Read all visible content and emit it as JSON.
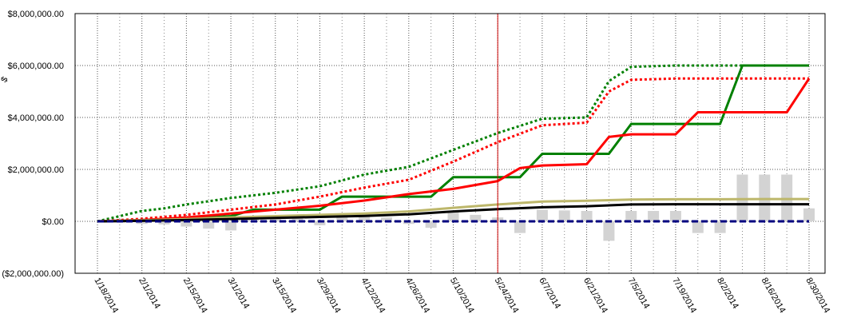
{
  "chart_data": {
    "type": "line",
    "title": "",
    "xlabel": "",
    "ylabel": "$",
    "ylim": [
      -2000000,
      8000000
    ],
    "y_ticks": [
      {
        "value": 8000000,
        "label": "$8,000,000.00"
      },
      {
        "value": 6000000,
        "label": "$6,000,000.00"
      },
      {
        "value": 4000000,
        "label": "$4,000,000.00"
      },
      {
        "value": 2000000,
        "label": "$2,000,000.00"
      },
      {
        "value": 0,
        "label": "$0.00"
      },
      {
        "value": -2000000,
        "label": "($2,000,000.00)"
      }
    ],
    "x_ticks": [
      "1/18/2014",
      "2/1/2014",
      "2/15/2014",
      "3/1/2014",
      "3/15/2014",
      "3/29/2014",
      "4/12/2014",
      "4/26/2014",
      "5/10/2014",
      "5/24/2014",
      "6/7/2014",
      "6/21/2014",
      "7/5/2014",
      "7/19/2014",
      "8/2/2014",
      "8/16/2014",
      "8/30/2014"
    ],
    "grid": true,
    "marker_date": "5/24/2014",
    "bar_dates": [
      "1/25/2014",
      "2/1/2014",
      "2/8/2014",
      "2/15/2014",
      "2/22/2014",
      "3/1/2014",
      "3/8/2014",
      "3/15/2014",
      "3/22/2014",
      "3/29/2014",
      "4/5/2014",
      "4/12/2014",
      "4/19/2014",
      "4/26/2014",
      "5/3/2014",
      "5/10/2014",
      "5/17/2014",
      "5/24/2014",
      "5/31/2014",
      "6/7/2014",
      "6/14/2014",
      "6/21/2014",
      "6/28/2014",
      "7/5/2014",
      "7/12/2014",
      "7/19/2014",
      "7/26/2014",
      "8/2/2014",
      "8/9/2014",
      "8/16/2014",
      "8/23/2014",
      "8/30/2014"
    ],
    "bar_values": [
      -50000,
      -100000,
      -120000,
      -200000,
      -280000,
      -350000,
      80000,
      100000,
      200000,
      -150000,
      220000,
      200000,
      150000,
      -100000,
      -250000,
      400000,
      250000,
      150000,
      -450000,
      450000,
      420000,
      400000,
      -750000,
      400000,
      400000,
      400000,
      -450000,
      -450000,
      1800000,
      1800000,
      1800000,
      500000
    ],
    "bar_color": "#d3d3d3",
    "series": [
      {
        "color": "#008000",
        "style": "dotted",
        "x": [
          "1/18/2014",
          "2/1/2014",
          "2/8/2014",
          "2/15/2014",
          "3/1/2014",
          "3/15/2014",
          "3/29/2014",
          "4/12/2014",
          "4/26/2014",
          "5/10/2014",
          "5/24/2014",
          "6/7/2014",
          "6/21/2014",
          "6/28/2014",
          "7/5/2014",
          "7/19/2014",
          "8/2/2014",
          "8/16/2014",
          "8/30/2014"
        ],
        "values": [
          0,
          400000,
          500000,
          650000,
          900000,
          1100000,
          1350000,
          1800000,
          2100000,
          2750000,
          3400000,
          3950000,
          4000000,
          5400000,
          5950000,
          6000000,
          6000000,
          6000000,
          6000000
        ]
      },
      {
        "color": "#ff0000",
        "style": "dotted",
        "x": [
          "1/18/2014",
          "2/1/2014",
          "2/15/2014",
          "3/1/2014",
          "3/15/2014",
          "3/29/2014",
          "4/12/2014",
          "4/26/2014",
          "5/10/2014",
          "5/24/2014",
          "6/7/2014",
          "6/21/2014",
          "6/28/2014",
          "7/5/2014",
          "7/19/2014",
          "8/2/2014",
          "8/16/2014",
          "8/30/2014"
        ],
        "values": [
          0,
          100000,
          250000,
          450000,
          650000,
          950000,
          1300000,
          1600000,
          2300000,
          3050000,
          3700000,
          3800000,
          5000000,
          5450000,
          5500000,
          5500000,
          5500000,
          5500000
        ]
      },
      {
        "color": "#008000",
        "style": "solid",
        "x": [
          "1/18/2014",
          "2/1/2014",
          "2/15/2014",
          "3/1/2014",
          "3/8/2014",
          "3/29/2014",
          "4/5/2014",
          "4/26/2014",
          "5/3/2014",
          "5/10/2014",
          "5/31/2014",
          "6/7/2014",
          "6/28/2014",
          "7/5/2014",
          "7/26/2014",
          "8/2/2014",
          "8/9/2014",
          "8/30/2014"
        ],
        "values": [
          0,
          50000,
          100000,
          200000,
          450000,
          450000,
          950000,
          950000,
          950000,
          1700000,
          1700000,
          2600000,
          2600000,
          3750000,
          3750000,
          3750000,
          6000000,
          6000000
        ]
      },
      {
        "color": "#ff0000",
        "style": "solid",
        "x": [
          "1/18/2014",
          "2/1/2014",
          "2/15/2014",
          "3/1/2014",
          "3/15/2014",
          "3/29/2014",
          "4/12/2014",
          "4/26/2014",
          "5/10/2014",
          "5/24/2014",
          "5/31/2014",
          "6/7/2014",
          "6/21/2014",
          "6/28/2014",
          "7/5/2014",
          "7/19/2014",
          "7/26/2014",
          "8/2/2014",
          "8/16/2014",
          "8/23/2014",
          "8/30/2014"
        ],
        "values": [
          0,
          50000,
          150000,
          300000,
          450000,
          600000,
          800000,
          1050000,
          1250000,
          1550000,
          2050000,
          2150000,
          2200000,
          3250000,
          3350000,
          3350000,
          4200000,
          4200000,
          4200000,
          4200000,
          5500000
        ]
      },
      {
        "color": "#bdb76b",
        "style": "solid",
        "x": [
          "1/18/2014",
          "2/1/2014",
          "2/15/2014",
          "3/1/2014",
          "3/15/2014",
          "3/29/2014",
          "4/12/2014",
          "4/26/2014",
          "5/10/2014",
          "5/24/2014",
          "6/7/2014",
          "6/21/2014",
          "7/5/2014",
          "7/19/2014",
          "8/2/2014",
          "8/16/2014",
          "8/30/2014"
        ],
        "values": [
          0,
          40000,
          90000,
          150000,
          200000,
          250000,
          300000,
          380000,
          520000,
          650000,
          760000,
          790000,
          840000,
          850000,
          850000,
          860000,
          860000
        ]
      },
      {
        "color": "#000000",
        "style": "solid",
        "x": [
          "1/18/2014",
          "2/1/2014",
          "2/15/2014",
          "3/1/2014",
          "3/15/2014",
          "3/29/2014",
          "4/12/2014",
          "4/26/2014",
          "5/10/2014",
          "5/24/2014",
          "6/7/2014",
          "6/21/2014",
          "7/5/2014",
          "7/19/2014",
          "8/2/2014",
          "8/16/2014",
          "8/30/2014"
        ],
        "values": [
          0,
          20000,
          50000,
          90000,
          130000,
          170000,
          210000,
          270000,
          380000,
          470000,
          540000,
          580000,
          650000,
          660000,
          660000,
          660000,
          660000
        ]
      },
      {
        "color": "#000080",
        "style": "dashed",
        "x": [
          "1/18/2014",
          "8/30/2014"
        ],
        "values": [
          0,
          0
        ]
      }
    ]
  }
}
